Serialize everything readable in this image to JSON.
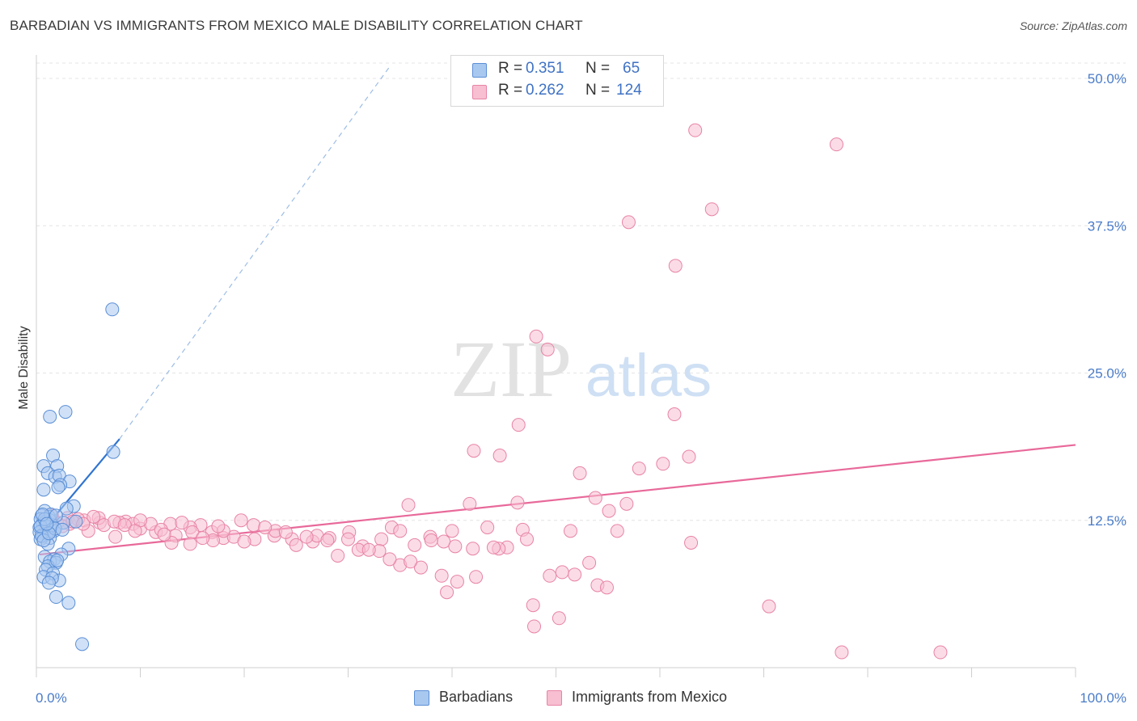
{
  "title": "BARBADIAN VS IMMIGRANTS FROM MEXICO MALE DISABILITY CORRELATION CHART",
  "source": "Source: ZipAtlas.com",
  "watermark": {
    "zip": "ZIP",
    "atlas": "atlas"
  },
  "legend": {
    "r_label": "R =",
    "n_label": "N =",
    "rows": [
      {
        "r": "0.351",
        "n": "65"
      },
      {
        "r": "0.262",
        "n": "124"
      }
    ]
  },
  "bottom_legend": [
    "Barbadians",
    "Immigrants from Mexico"
  ],
  "colors": {
    "blue_fill": "#a9c8f0",
    "blue_stroke": "#5b8fd6",
    "blue_line": "#2f74d0",
    "pink_fill": "#f7bfd1",
    "pink_stroke": "#e883a6",
    "pink_line": "#e8699a",
    "grid": "#e4e4e4",
    "tick_label": "#4a7cc9"
  },
  "chart_data": {
    "type": "scatter",
    "title": "BARBADIAN VS IMMIGRANTS FROM MEXICO MALE DISABILITY CORRELATION CHART",
    "xlabel": "",
    "ylabel": "Male Disability",
    "xlim": [
      0,
      100
    ],
    "ylim": [
      0,
      52.5
    ],
    "x_tick_labels": [
      "0.0%",
      "100.0%"
    ],
    "y_ticks": [
      12.5,
      25.0,
      37.5,
      50.0
    ],
    "y_tick_labels": [
      "12.5%",
      "25.0%",
      "37.5%",
      "50.0%"
    ],
    "grid": true,
    "legend_position": "top-center",
    "series": [
      {
        "name": "Barbadians",
        "R": 0.351,
        "N": 65,
        "trend": {
          "x0": 0.3,
          "y0": 11.3,
          "x1": 8.0,
          "y1": 19.4,
          "dash_to_x": 34.0,
          "dash_to_y": 51.0
        },
        "points": [
          [
            7.3,
            30.4
          ],
          [
            1.3,
            21.3
          ],
          [
            2.8,
            21.7
          ],
          [
            7.4,
            18.3
          ],
          [
            1.6,
            18.0
          ],
          [
            2.0,
            17.1
          ],
          [
            0.7,
            17.1
          ],
          [
            1.1,
            16.5
          ],
          [
            1.8,
            16.2
          ],
          [
            2.2,
            16.3
          ],
          [
            3.2,
            15.8
          ],
          [
            2.3,
            15.5
          ],
          [
            0.7,
            15.1
          ],
          [
            2.1,
            15.3
          ],
          [
            3.6,
            13.7
          ],
          [
            2.9,
            13.5
          ],
          [
            0.8,
            13.3
          ],
          [
            1.2,
            12.8
          ],
          [
            0.5,
            12.9
          ],
          [
            0.4,
            12.6
          ],
          [
            0.6,
            12.2
          ],
          [
            1.4,
            12.0
          ],
          [
            0.3,
            11.9
          ],
          [
            0.9,
            11.8
          ],
          [
            0.5,
            11.6
          ],
          [
            0.3,
            11.5
          ],
          [
            1.7,
            11.6
          ],
          [
            1.0,
            11.3
          ],
          [
            0.6,
            11.1
          ],
          [
            1.3,
            11.0
          ],
          [
            0.4,
            10.9
          ],
          [
            3.1,
            10.1
          ],
          [
            0.8,
            9.4
          ],
          [
            2.4,
            9.6
          ],
          [
            1.7,
            9.2
          ],
          [
            1.3,
            9.0
          ],
          [
            1.9,
            8.9
          ],
          [
            1.1,
            8.6
          ],
          [
            0.9,
            8.3
          ],
          [
            1.6,
            8.0
          ],
          [
            0.7,
            7.7
          ],
          [
            2.2,
            7.4
          ],
          [
            1.5,
            7.6
          ],
          [
            1.2,
            7.2
          ],
          [
            1.9,
            6.0
          ],
          [
            3.1,
            5.5
          ],
          [
            4.4,
            2.0
          ],
          [
            1.3,
            12.5
          ],
          [
            2.6,
            12.3
          ],
          [
            0.5,
            11.2
          ],
          [
            1.5,
            12.1
          ],
          [
            0.9,
            12.4
          ],
          [
            1.8,
            11.8
          ],
          [
            1.1,
            10.5
          ],
          [
            2.0,
            9.1
          ],
          [
            0.7,
            10.8
          ],
          [
            1.4,
            13.0
          ],
          [
            0.4,
            12.0
          ],
          [
            3.8,
            12.4
          ],
          [
            2.5,
            11.7
          ],
          [
            1.2,
            11.4
          ],
          [
            0.8,
            12.6
          ],
          [
            1.9,
            12.9
          ],
          [
            0.6,
            13.0
          ],
          [
            1.0,
            12.2
          ]
        ]
      },
      {
        "name": "Immigrants from Mexico",
        "R": 0.262,
        "N": 124,
        "trend": {
          "x0": 0.3,
          "y0": 9.6,
          "x1": 100.0,
          "y1": 18.9
        },
        "points": [
          [
            63.4,
            45.6
          ],
          [
            77.0,
            44.4
          ],
          [
            65.0,
            38.9
          ],
          [
            57.0,
            37.8
          ],
          [
            61.5,
            34.1
          ],
          [
            48.1,
            28.1
          ],
          [
            49.2,
            27.0
          ],
          [
            46.4,
            20.6
          ],
          [
            61.4,
            21.5
          ],
          [
            42.1,
            18.4
          ],
          [
            44.6,
            18.0
          ],
          [
            62.8,
            17.9
          ],
          [
            60.3,
            17.3
          ],
          [
            58.0,
            16.9
          ],
          [
            52.3,
            16.5
          ],
          [
            53.8,
            14.4
          ],
          [
            46.3,
            14.0
          ],
          [
            41.7,
            13.9
          ],
          [
            35.8,
            13.8
          ],
          [
            56.8,
            13.9
          ],
          [
            55.1,
            13.3
          ],
          [
            19.7,
            12.5
          ],
          [
            15.8,
            12.1
          ],
          [
            12.9,
            12.2
          ],
          [
            8.6,
            12.4
          ],
          [
            6.1,
            12.3
          ],
          [
            4.6,
            12.5
          ],
          [
            3.2,
            12.2
          ],
          [
            9.3,
            12.2
          ],
          [
            10.0,
            11.8
          ],
          [
            11.5,
            11.5
          ],
          [
            13.4,
            11.2
          ],
          [
            14.8,
            11.9
          ],
          [
            16.9,
            11.5
          ],
          [
            18.0,
            11.0
          ],
          [
            20.9,
            12.1
          ],
          [
            22.9,
            11.2
          ],
          [
            24.6,
            10.9
          ],
          [
            26.6,
            10.7
          ],
          [
            28.2,
            11.0
          ],
          [
            30.1,
            11.5
          ],
          [
            31.4,
            10.3
          ],
          [
            33.2,
            10.9
          ],
          [
            34.2,
            11.9
          ],
          [
            35.0,
            11.6
          ],
          [
            36.4,
            10.4
          ],
          [
            37.9,
            11.1
          ],
          [
            39.2,
            10.7
          ],
          [
            40.3,
            10.3
          ],
          [
            43.4,
            11.9
          ],
          [
            45.3,
            10.2
          ],
          [
            46.8,
            11.7
          ],
          [
            51.4,
            11.6
          ],
          [
            55.9,
            11.6
          ],
          [
            63.0,
            10.6
          ],
          [
            5.0,
            11.6
          ],
          [
            7.6,
            11.1
          ],
          [
            11.0,
            12.2
          ],
          [
            13.0,
            10.6
          ],
          [
            15.0,
            11.5
          ],
          [
            17.0,
            10.8
          ],
          [
            19.0,
            11.1
          ],
          [
            21.0,
            10.9
          ],
          [
            23.0,
            11.6
          ],
          [
            25.0,
            10.4
          ],
          [
            27.0,
            11.2
          ],
          [
            29.0,
            9.5
          ],
          [
            31.0,
            10.0
          ],
          [
            33.0,
            9.9
          ],
          [
            35.0,
            8.7
          ],
          [
            37.0,
            8.5
          ],
          [
            39.0,
            7.8
          ],
          [
            40.5,
            7.3
          ],
          [
            42.3,
            7.7
          ],
          [
            44.5,
            10.1
          ],
          [
            47.2,
            10.9
          ],
          [
            49.4,
            7.8
          ],
          [
            50.6,
            8.1
          ],
          [
            51.8,
            7.9
          ],
          [
            53.2,
            8.9
          ],
          [
            54.0,
            7.0
          ],
          [
            54.9,
            6.8
          ],
          [
            39.5,
            6.4
          ],
          [
            47.8,
            5.3
          ],
          [
            50.3,
            4.2
          ],
          [
            47.9,
            3.5
          ],
          [
            70.5,
            5.2
          ],
          [
            77.5,
            1.3
          ],
          [
            87.0,
            1.3
          ],
          [
            3.0,
            12.7
          ],
          [
            4.0,
            12.6
          ],
          [
            6.0,
            12.7
          ],
          [
            8.0,
            12.3
          ],
          [
            10.0,
            12.5
          ],
          [
            12.0,
            11.7
          ],
          [
            14.0,
            12.3
          ],
          [
            16.0,
            11.0
          ],
          [
            18.0,
            11.6
          ],
          [
            20.0,
            10.7
          ],
          [
            22.0,
            11.9
          ],
          [
            24.0,
            11.5
          ],
          [
            26.0,
            11.1
          ],
          [
            28.0,
            10.8
          ],
          [
            30.0,
            10.9
          ],
          [
            32.0,
            10.0
          ],
          [
            34.0,
            9.2
          ],
          [
            36.0,
            9.0
          ],
          [
            38.0,
            10.8
          ],
          [
            40.0,
            11.6
          ],
          [
            42.0,
            10.1
          ],
          [
            44.0,
            10.2
          ],
          [
            2.0,
            12.3
          ],
          [
            1.5,
            12.9
          ],
          [
            2.5,
            12.0
          ],
          [
            3.5,
            12.4
          ],
          [
            4.5,
            12.2
          ],
          [
            5.5,
            12.8
          ],
          [
            6.5,
            12.1
          ],
          [
            7.5,
            12.4
          ],
          [
            8.5,
            12.1
          ],
          [
            9.5,
            11.6
          ],
          [
            12.3,
            11.3
          ],
          [
            14.8,
            10.5
          ],
          [
            17.5,
            12.0
          ]
        ]
      }
    ]
  }
}
